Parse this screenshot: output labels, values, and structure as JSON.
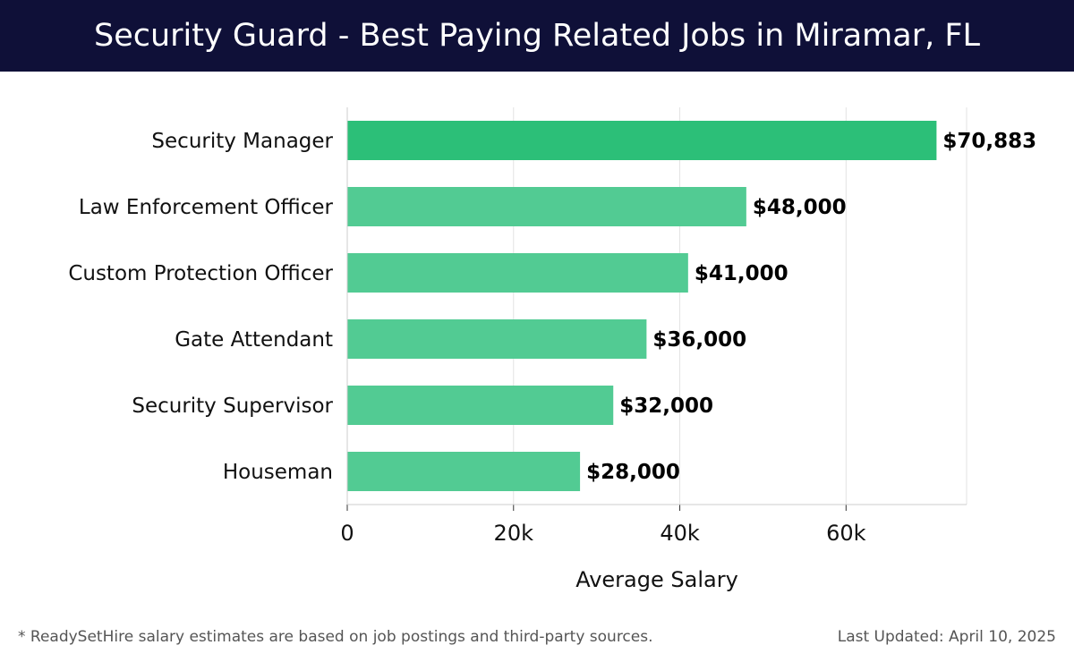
{
  "header": {
    "title": "Security Guard - Best Paying Related Jobs in Miramar, FL"
  },
  "chart_data": {
    "type": "bar",
    "orientation": "horizontal",
    "title": "Security Guard - Best Paying Related Jobs in Miramar, FL",
    "categories": [
      "Security Manager",
      "Law Enforcement Officer",
      "Custom Protection Officer",
      "Gate Attendant",
      "Security Supervisor",
      "Houseman"
    ],
    "values": [
      70883,
      48000,
      41000,
      36000,
      32000,
      28000
    ],
    "value_labels": [
      "$70,883",
      "$48,000",
      "$41,000",
      "$36,000",
      "$32,000",
      "$28,000"
    ],
    "xlabel": "Average Salary",
    "ylabel": "",
    "xlim": [
      0,
      74500
    ],
    "xticks": [
      0,
      20000,
      40000,
      60000
    ],
    "xtick_labels": [
      "0",
      "20k",
      "40k",
      "60k"
    ],
    "grid": true,
    "colors": {
      "highlight": "#2cbf78",
      "bar": "#52cb93"
    }
  },
  "footer": {
    "note": "* ReadySetHire salary estimates are based on job postings and third-party sources.",
    "updated": "Last Updated: April 10, 2025"
  }
}
